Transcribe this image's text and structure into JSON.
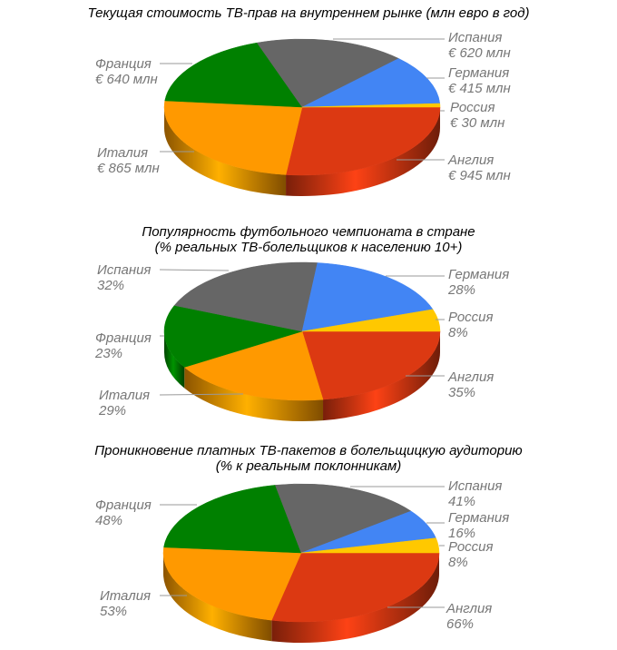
{
  "chart_data": [
    {
      "type": "pie",
      "title": "Текущая стоимость ТВ-прав на внутреннем рынке (млн евро в год)",
      "categories": [
        "Англия",
        "Италия",
        "Франция",
        "Испания",
        "Германия",
        "Россия"
      ],
      "values": [
        945,
        865,
        640,
        620,
        415,
        30
      ],
      "value_labels": [
        "€ 945 млн",
        "€ 865 млн",
        "€ 640 млн",
        "€ 620 млн",
        "€ 415 млн",
        "€ 30 млн"
      ],
      "unit": "млн евро в год",
      "style": "3d",
      "legend": "callout labels"
    },
    {
      "type": "pie",
      "title": "Популярность футбольного чемпионата в стране",
      "subtitle": "(% реальных ТВ-болельщиков к населению 10+)",
      "categories": [
        "Англия",
        "Италия",
        "Франция",
        "Испания",
        "Германия",
        "Россия"
      ],
      "values": [
        35,
        29,
        23,
        32,
        28,
        8
      ],
      "value_labels": [
        "35%",
        "29%",
        "23%",
        "32%",
        "28%",
        "8%"
      ],
      "unit": "%",
      "style": "3d",
      "legend": "callout labels"
    },
    {
      "type": "pie",
      "title": "Проникновение платных ТВ-пакетов в болельщицкую аудиторию",
      "subtitle": "(% к реальным поклонникам)",
      "categories": [
        "Англия",
        "Италия",
        "Франция",
        "Испания",
        "Германия",
        "Россия"
      ],
      "values": [
        66,
        53,
        48,
        41,
        16,
        8
      ],
      "value_labels": [
        "66%",
        "53%",
        "48%",
        "41%",
        "16%",
        "8%"
      ],
      "unit": "%",
      "style": "3d",
      "legend": "callout labels"
    }
  ],
  "colors": {
    "Англия": "#dc3912",
    "Италия": "#ff9900",
    "Франция": "#008000",
    "Испания": "#666666",
    "Германия": "#4285f4",
    "Россия": "#ffc800"
  },
  "charts": [
    {
      "title_line1": "Текущая стоимость ТВ-прав на внутреннем рынке (млн евро в год)",
      "title_line2": "",
      "labels": [
        {
          "name": "Испания",
          "value": "€ 620 млн"
        },
        {
          "name": "Германия",
          "value": "€ 415 млн"
        },
        {
          "name": "Россия",
          "value": "€ 30 млн"
        },
        {
          "name": "Англия",
          "value": "€ 945 млн"
        },
        {
          "name": "Франция",
          "value": "€ 640 млн"
        },
        {
          "name": "Италия",
          "value": "€ 865 млн"
        }
      ]
    },
    {
      "title_line1": "Популярность футбольного чемпионата в стране",
      "title_line2": "(% реальных ТВ-болельщиков к населению 10+)",
      "labels": [
        {
          "name": "Испания",
          "value": "32%"
        },
        {
          "name": "Германия",
          "value": "28%"
        },
        {
          "name": "Россия",
          "value": "8%"
        },
        {
          "name": "Англия",
          "value": "35%"
        },
        {
          "name": "Франция",
          "value": "23%"
        },
        {
          "name": "Италия",
          "value": "29%"
        }
      ]
    },
    {
      "title_line1": "Проникновение платных ТВ-пакетов в болельщицкую аудиторию",
      "title_line2": "(% к реальным поклонникам)",
      "labels": [
        {
          "name": "Испания",
          "value": "41%"
        },
        {
          "name": "Германия",
          "value": "16%"
        },
        {
          "name": "Россия",
          "value": "8%"
        },
        {
          "name": "Англия",
          "value": "66%"
        },
        {
          "name": "Франция",
          "value": "48%"
        },
        {
          "name": "Италия",
          "value": "53%"
        }
      ]
    }
  ]
}
